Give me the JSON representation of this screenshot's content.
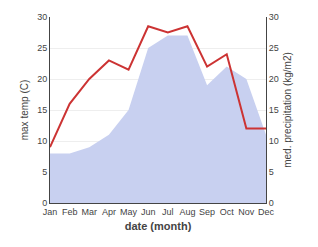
{
  "chart_data": {
    "type": "line",
    "xlabel": "date (month)",
    "ylabel": "max temp (C)",
    "y2label": "med. precipitation (kg/m2)",
    "categories": [
      "Jan",
      "Feb",
      "Mar",
      "Apr",
      "May",
      "Jun",
      "Jul",
      "Aug",
      "Sep",
      "Oct",
      "Nov",
      "Dec"
    ],
    "series": [
      {
        "type": "area",
        "axis": "y2",
        "color": "#c8d0f0",
        "values": [
          8,
          8,
          9,
          11,
          15,
          25,
          27,
          27,
          19,
          22,
          20,
          11
        ]
      },
      {
        "type": "line",
        "color": "#cc3333",
        "values": [
          9,
          16,
          20,
          23,
          21.5,
          28.5,
          27.5,
          28.5,
          22,
          24,
          12,
          12
        ]
      }
    ],
    "ylim": [
      0,
      30
    ],
    "yticks": [
      0,
      5,
      10,
      15,
      20,
      25,
      30
    ],
    "y2lim": [
      0,
      30
    ],
    "y2ticks": [
      0,
      5,
      10,
      15,
      20,
      25,
      30
    ],
    "grid": true
  }
}
